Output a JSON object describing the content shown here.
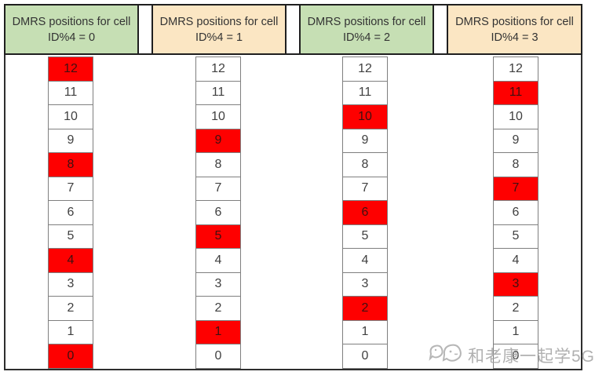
{
  "colors": {
    "header_green": "#c6dfb4",
    "header_tan": "#fbe6c3",
    "highlight_red": "#fe0000"
  },
  "columns": [
    {
      "header_line1": "DMRS positions for cell",
      "header_line2": "ID%4 = 0",
      "theme": "green",
      "cells": [
        {
          "value": "12",
          "highlight": true
        },
        {
          "value": "11",
          "highlight": false
        },
        {
          "value": "10",
          "highlight": false
        },
        {
          "value": "9",
          "highlight": false
        },
        {
          "value": "8",
          "highlight": true
        },
        {
          "value": "7",
          "highlight": false
        },
        {
          "value": "6",
          "highlight": false
        },
        {
          "value": "5",
          "highlight": false
        },
        {
          "value": "4",
          "highlight": true
        },
        {
          "value": "3",
          "highlight": false
        },
        {
          "value": "2",
          "highlight": false
        },
        {
          "value": "1",
          "highlight": false
        },
        {
          "value": "0",
          "highlight": true
        }
      ]
    },
    {
      "header_line1": "DMRS positions for cell",
      "header_line2": "ID%4 = 1",
      "theme": "tan",
      "cells": [
        {
          "value": "12",
          "highlight": false
        },
        {
          "value": "11",
          "highlight": false
        },
        {
          "value": "10",
          "highlight": false
        },
        {
          "value": "9",
          "highlight": true
        },
        {
          "value": "8",
          "highlight": false
        },
        {
          "value": "7",
          "highlight": false
        },
        {
          "value": "6",
          "highlight": false
        },
        {
          "value": "5",
          "highlight": true
        },
        {
          "value": "4",
          "highlight": false
        },
        {
          "value": "3",
          "highlight": false
        },
        {
          "value": "2",
          "highlight": false
        },
        {
          "value": "1",
          "highlight": true
        },
        {
          "value": "0",
          "highlight": false
        }
      ]
    },
    {
      "header_line1": "DMRS positions for cell",
      "header_line2": "ID%4 = 2",
      "theme": "green",
      "cells": [
        {
          "value": "12",
          "highlight": false
        },
        {
          "value": "11",
          "highlight": false
        },
        {
          "value": "10",
          "highlight": true
        },
        {
          "value": "9",
          "highlight": false
        },
        {
          "value": "8",
          "highlight": false
        },
        {
          "value": "7",
          "highlight": false
        },
        {
          "value": "6",
          "highlight": true
        },
        {
          "value": "5",
          "highlight": false
        },
        {
          "value": "4",
          "highlight": false
        },
        {
          "value": "3",
          "highlight": false
        },
        {
          "value": "2",
          "highlight": true
        },
        {
          "value": "1",
          "highlight": false
        },
        {
          "value": "0",
          "highlight": false
        }
      ]
    },
    {
      "header_line1": "DMRS positions for cell",
      "header_line2": "ID%4 = 3",
      "theme": "tan",
      "cells": [
        {
          "value": "12",
          "highlight": false
        },
        {
          "value": "11",
          "highlight": true
        },
        {
          "value": "10",
          "highlight": false
        },
        {
          "value": "9",
          "highlight": false
        },
        {
          "value": "8",
          "highlight": false
        },
        {
          "value": "7",
          "highlight": true
        },
        {
          "value": "6",
          "highlight": false
        },
        {
          "value": "5",
          "highlight": false
        },
        {
          "value": "4",
          "highlight": false
        },
        {
          "value": "3",
          "highlight": true
        },
        {
          "value": "2",
          "highlight": false
        },
        {
          "value": "1",
          "highlight": false
        },
        {
          "value": "0",
          "highlight": false
        }
      ]
    }
  ],
  "watermark": {
    "text": "和老康一起学5G",
    "logo": "bird-chat-logo"
  }
}
